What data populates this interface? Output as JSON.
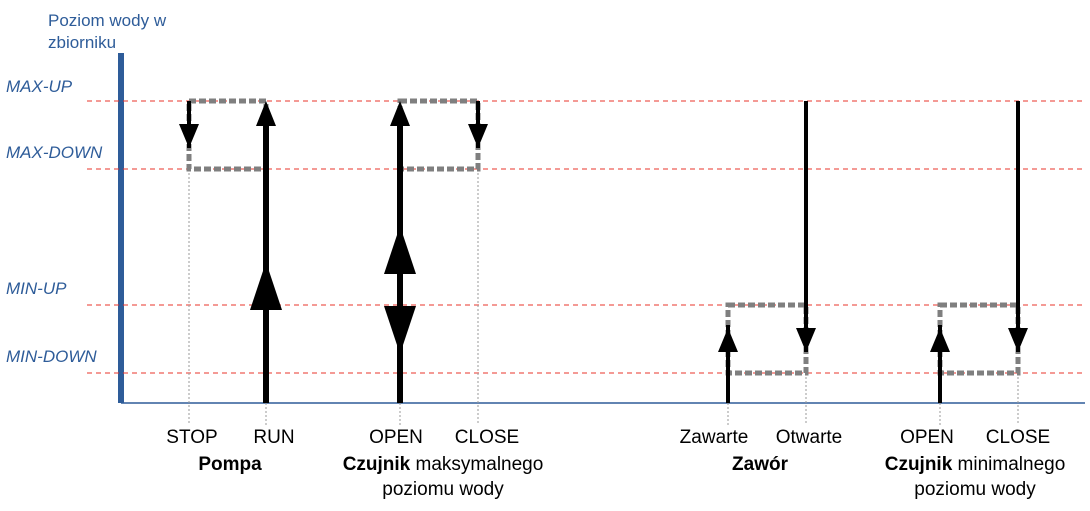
{
  "axis": {
    "title_line1": "Poziom wody w",
    "title_line2": "zbiorniku"
  },
  "levels": {
    "max_up": "MAX-UP",
    "max_down": "MAX-DOWN",
    "min_up": "MIN-UP",
    "min_down": "MIN-DOWN"
  },
  "groups": {
    "pump": {
      "state_a": "STOP",
      "state_b": "RUN",
      "title": "Pompa"
    },
    "max_sensor": {
      "state_a": "OPEN",
      "state_b": "CLOSE",
      "title_bold": "Czujnik",
      "title_rest": " maksymalnego",
      "title_line2": "poziomu wody"
    },
    "valve": {
      "state_a": "Zawarte",
      "state_b": "Otwarte",
      "title": "Zawór"
    },
    "min_sensor": {
      "state_a": "OPEN",
      "state_b": "CLOSE",
      "title_bold": "Czujnik",
      "title_rest": " minimalnego",
      "title_line2": "poziomu wody"
    }
  },
  "colors": {
    "axis": "#2e5c99",
    "threshold": "#e8342b",
    "hysteresis": "#7f7f7f",
    "arrow": "#000000"
  }
}
